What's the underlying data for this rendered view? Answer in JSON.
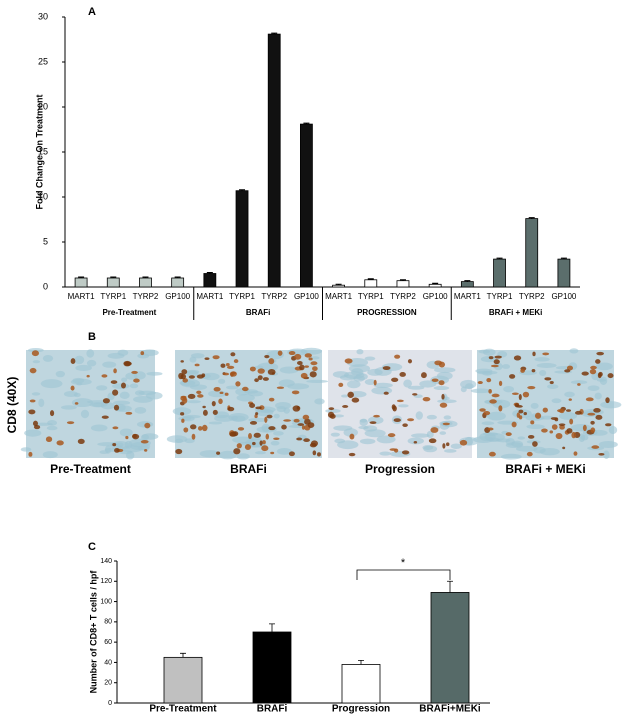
{
  "chart_data": [
    {
      "type": "bar",
      "panel": "A",
      "y_label": "Fold Change On Treatment",
      "ylim": [
        0,
        30
      ],
      "yticks": [
        0,
        5,
        10,
        15,
        20,
        25,
        30
      ],
      "groups": [
        {
          "name": "Pre-Treatment",
          "color": "#bfcbc6",
          "categories": [
            "MART1",
            "TYRP1",
            "TYRP2",
            "GP100"
          ],
          "values": [
            1.0,
            1.0,
            1.0,
            1.0
          ],
          "errors": [
            0.1,
            0.1,
            0.1,
            0.1
          ]
        },
        {
          "name": "BRAFi",
          "color": "#111111",
          "categories": [
            "MART1",
            "TYRP1",
            "TYRP2",
            "GP100"
          ],
          "values": [
            1.5,
            10.7,
            28.1,
            18.1
          ],
          "errors": [
            0.1,
            0.1,
            0.1,
            0.1
          ]
        },
        {
          "name": "PROGRESSION",
          "color": "#ffffff",
          "categories": [
            "MART1",
            "TYRP1",
            "TYRP2",
            "GP100"
          ],
          "values": [
            0.2,
            0.8,
            0.7,
            0.3
          ],
          "errors": [
            0.1,
            0.1,
            0.1,
            0.1
          ]
        },
        {
          "name": "BRAFi + MEKi",
          "color": "#5b6e6c",
          "categories": [
            "MART1",
            "TYRP1",
            "TYRP2",
            "GP100"
          ],
          "values": [
            0.6,
            3.1,
            7.6,
            3.1
          ],
          "errors": [
            0.1,
            0.1,
            0.1,
            0.1
          ]
        }
      ]
    },
    {
      "type": "bar",
      "panel": "C",
      "y_label": "Number of CD8+ T cells / hpf",
      "ylim": [
        0,
        140
      ],
      "yticks": [
        0,
        20,
        40,
        60,
        80,
        100,
        120,
        140
      ],
      "categories": [
        "Pre-Treatment",
        "BRAFi",
        "Progression",
        "BRAFi+MEKi"
      ],
      "values": [
        45,
        70,
        38,
        109
      ],
      "errors": [
        4,
        8,
        4,
        11
      ],
      "colors": [
        "#c0c0c0",
        "#000000",
        "#ffffff",
        "#566a68"
      ],
      "significance": "*"
    }
  ],
  "images": {
    "panel": "B",
    "axis_label": "CD8 (40X)",
    "captions": [
      "Pre-Treatment",
      "BRAFi",
      "Progression",
      "BRAFi + MEKi"
    ]
  }
}
